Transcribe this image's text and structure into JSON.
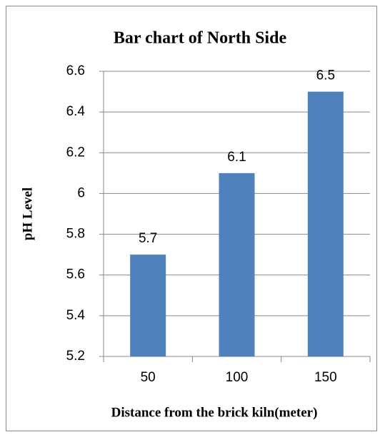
{
  "chart_data": {
    "type": "bar",
    "title": "Bar chart of North Side",
    "x_label": "Distance from the brick kiln(meter)",
    "y_label": "pH Level",
    "categories": [
      "50",
      "100",
      "150"
    ],
    "values": [
      5.7,
      6.1,
      6.5
    ],
    "color": "#4f81bd",
    "ylim": [
      5.2,
      6.6
    ],
    "yticks": [
      5.2,
      5.4,
      5.6,
      5.8,
      6,
      6.2,
      6.4,
      6.6
    ],
    "grid": true,
    "show_value_labels": true
  }
}
